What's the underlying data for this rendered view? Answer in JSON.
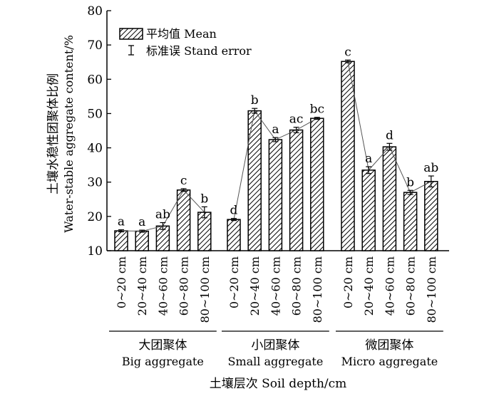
{
  "chart_data": {
    "type": "bar",
    "ylabel_cn": "土壤水稳性团聚体比例",
    "ylabel_en": "Water-stable aggregate content/%",
    "xlabel": "土壤层次 Soil depth/cm",
    "ylim": [
      10,
      80
    ],
    "yticks": [
      "10",
      "20",
      "30",
      "40",
      "50",
      "60",
      "70",
      "80"
    ],
    "legend": {
      "position": "top-left",
      "mean_label": "平均值 Mean",
      "error_label": "标准误 Stand error"
    },
    "categories": [
      "0~20 cm",
      "20~40 cm",
      "40~60 cm",
      "60~80 cm",
      "80~100 cm"
    ],
    "groups": [
      {
        "name_cn": "大团聚体",
        "name_en": "Big aggregate",
        "values": [
          15.8,
          15.7,
          17.2,
          27.7,
          21.2
        ],
        "errors": [
          0.3,
          0.3,
          1.0,
          0.4,
          1.6
        ],
        "labels": [
          "a",
          "a",
          "ab",
          "c",
          "b"
        ]
      },
      {
        "name_cn": "小团聚体",
        "name_en": "Small aggregate",
        "values": [
          19.1,
          50.8,
          42.4,
          45.2,
          48.6
        ],
        "errors": [
          0.3,
          0.7,
          0.6,
          0.8,
          0.3
        ],
        "labels": [
          "d",
          "b",
          "a",
          "ac",
          "bc"
        ]
      },
      {
        "name_cn": "微团聚体",
        "name_en": "Micro aggregate",
        "values": [
          65.2,
          33.5,
          40.3,
          27.0,
          30.2
        ],
        "errors": [
          0.4,
          1.0,
          1.0,
          0.6,
          1.6
        ],
        "labels": [
          "c",
          "a",
          "d",
          "b",
          "ab"
        ]
      }
    ]
  }
}
